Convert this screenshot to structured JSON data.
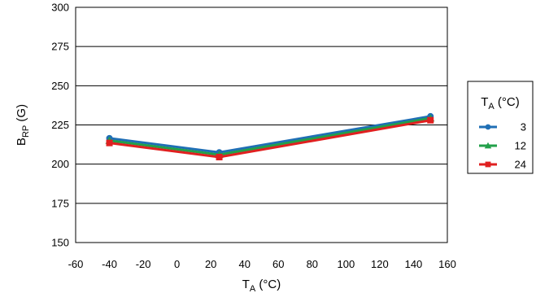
{
  "chart_data": {
    "type": "line",
    "xlabel": {
      "main": "T",
      "sub": "A",
      "suffix": " (°C)"
    },
    "ylabel": {
      "main": "B",
      "sub": "RP",
      "suffix": " (G)"
    },
    "xlim": [
      -60,
      160
    ],
    "ylim": [
      150,
      300
    ],
    "xticks": [
      -60,
      -40,
      -20,
      0,
      20,
      40,
      60,
      80,
      100,
      120,
      140,
      160
    ],
    "yticks": [
      150,
      175,
      200,
      225,
      250,
      275,
      300
    ],
    "grid": "horizontal",
    "legend": {
      "title": {
        "main": "T",
        "sub": "A",
        "suffix": " (°C)"
      },
      "placement": "right"
    },
    "series": [
      {
        "name": "3",
        "color": "#1f6fb5",
        "marker": "circle",
        "x": [
          -40,
          25,
          150
        ],
        "y": [
          216.5,
          207.5,
          230.5
        ]
      },
      {
        "name": "12",
        "color": "#22a04a",
        "marker": "triangle",
        "x": [
          -40,
          25,
          150
        ],
        "y": [
          215.0,
          206.0,
          229.3
        ]
      },
      {
        "name": "24",
        "color": "#e02020",
        "marker": "square",
        "x": [
          -40,
          25,
          150
        ],
        "y": [
          213.5,
          204.5,
          228.0
        ]
      }
    ]
  }
}
